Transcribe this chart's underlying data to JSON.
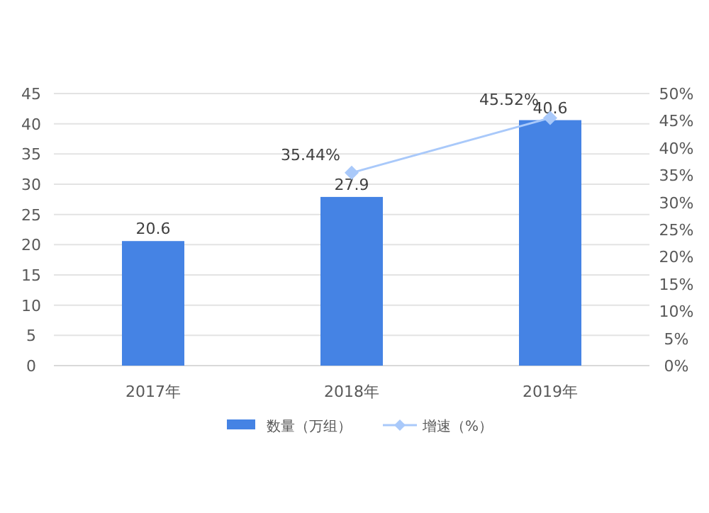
{
  "chart_data": {
    "type": "bar",
    "categories": [
      "2017年",
      "2018年",
      "2019年"
    ],
    "series": [
      {
        "name": "数量（万组）",
        "color": "#4583e4",
        "values": [
          20.6,
          27.9,
          40.6
        ],
        "value_labels": [
          "20.6",
          "27.9",
          "40.6"
        ]
      },
      {
        "name": "增速（%）",
        "type": "line",
        "axis": "y2",
        "color": "#a9c9fa",
        "marker": "diamond",
        "values": [
          null,
          35.44,
          45.52
        ],
        "value_labels": [
          null,
          "35.44%",
          "45.52%"
        ]
      }
    ],
    "ylim": [
      0,
      45
    ],
    "yticks": [
      0,
      5,
      10,
      15,
      20,
      25,
      30,
      35,
      40,
      45
    ],
    "y2lim": [
      0,
      50
    ],
    "y2ticks": [
      {
        "value": 0,
        "label": "0%"
      },
      {
        "value": 5,
        "label": "5%"
      },
      {
        "value": 10,
        "label": "10%"
      },
      {
        "value": 15,
        "label": "15%"
      },
      {
        "value": 20,
        "label": "20%"
      },
      {
        "value": 25,
        "label": "25%"
      },
      {
        "value": 30,
        "label": "30%"
      },
      {
        "value": 35,
        "label": "35%"
      },
      {
        "value": 40,
        "label": "40%"
      },
      {
        "value": 45,
        "label": "45%"
      },
      {
        "value": 50,
        "label": "50%"
      }
    ],
    "grid": "y",
    "legend": "bottom"
  }
}
